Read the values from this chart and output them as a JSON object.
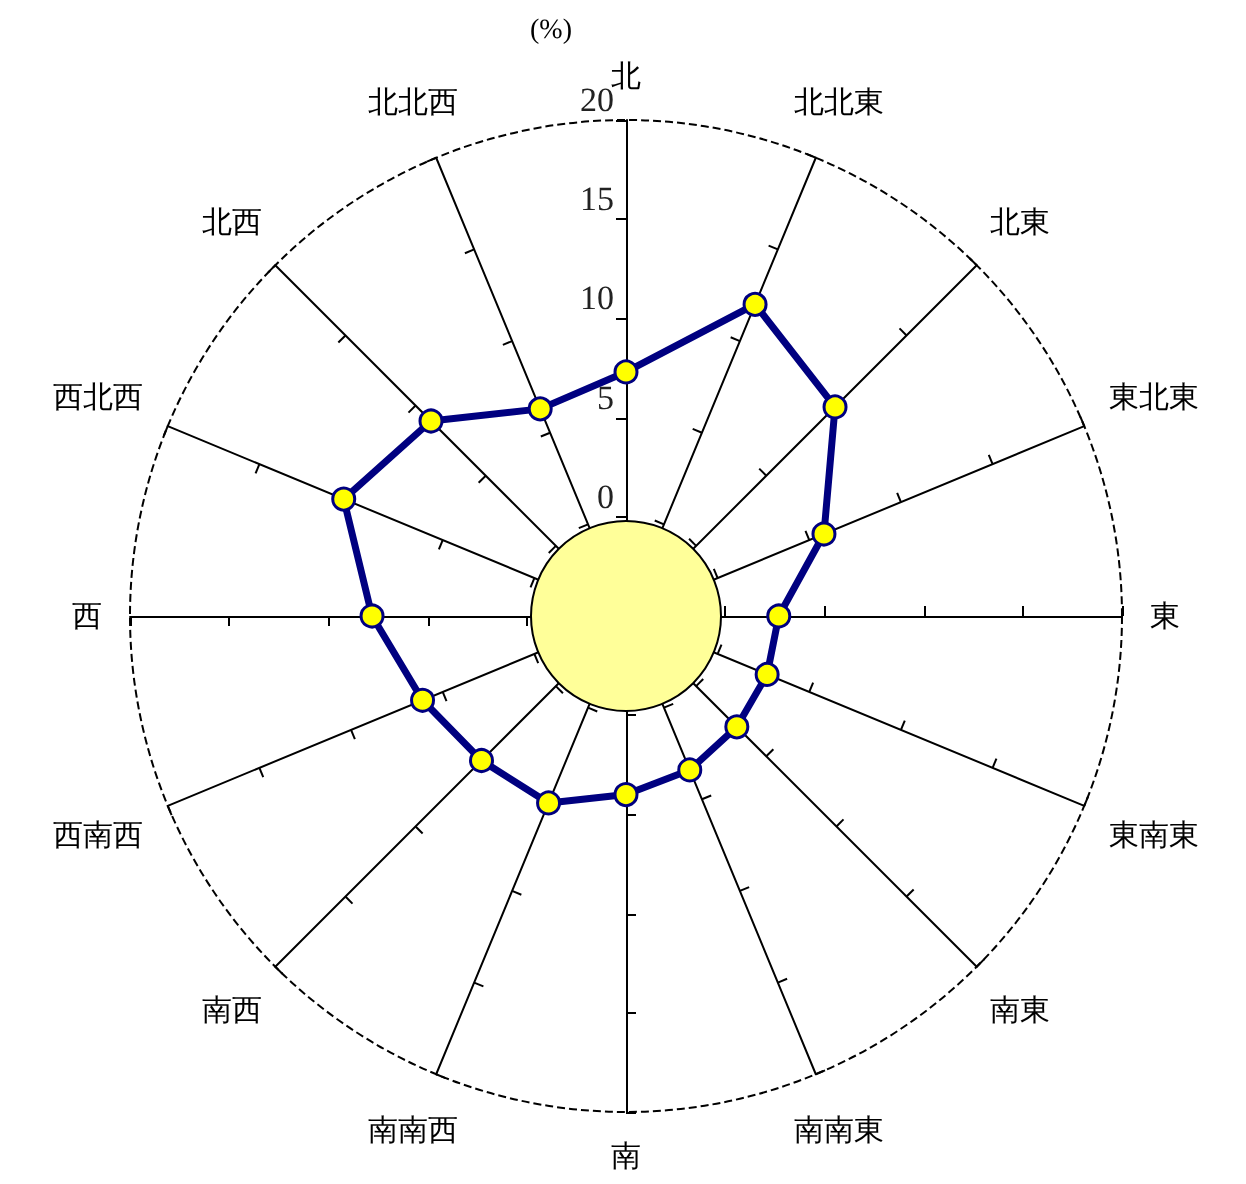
{
  "chart_data": {
    "type": "radar",
    "ylabel": "(%)",
    "categories": [
      "北",
      "北北東",
      "北東",
      "東北東",
      "東",
      "東南東",
      "南東",
      "南南東",
      "南",
      "南南西",
      "南西",
      "西南西",
      "西",
      "西北西",
      "北西",
      "北北西"
    ],
    "series": [
      {
        "color": "#000080",
        "values": [
          7.3,
          12.0,
          9.9,
          5.8,
          2.7,
          2.7,
          2.9,
          3.4,
          4.0,
          5.2,
          5.3,
          6.1,
          7.8,
          10.4,
          8.9,
          6.3
        ]
      }
    ],
    "ylim": [
      -5,
      20
    ],
    "yticks": [
      0,
      5,
      10,
      15,
      20
    ],
    "marker": "circle",
    "grid": "x"
  }
}
